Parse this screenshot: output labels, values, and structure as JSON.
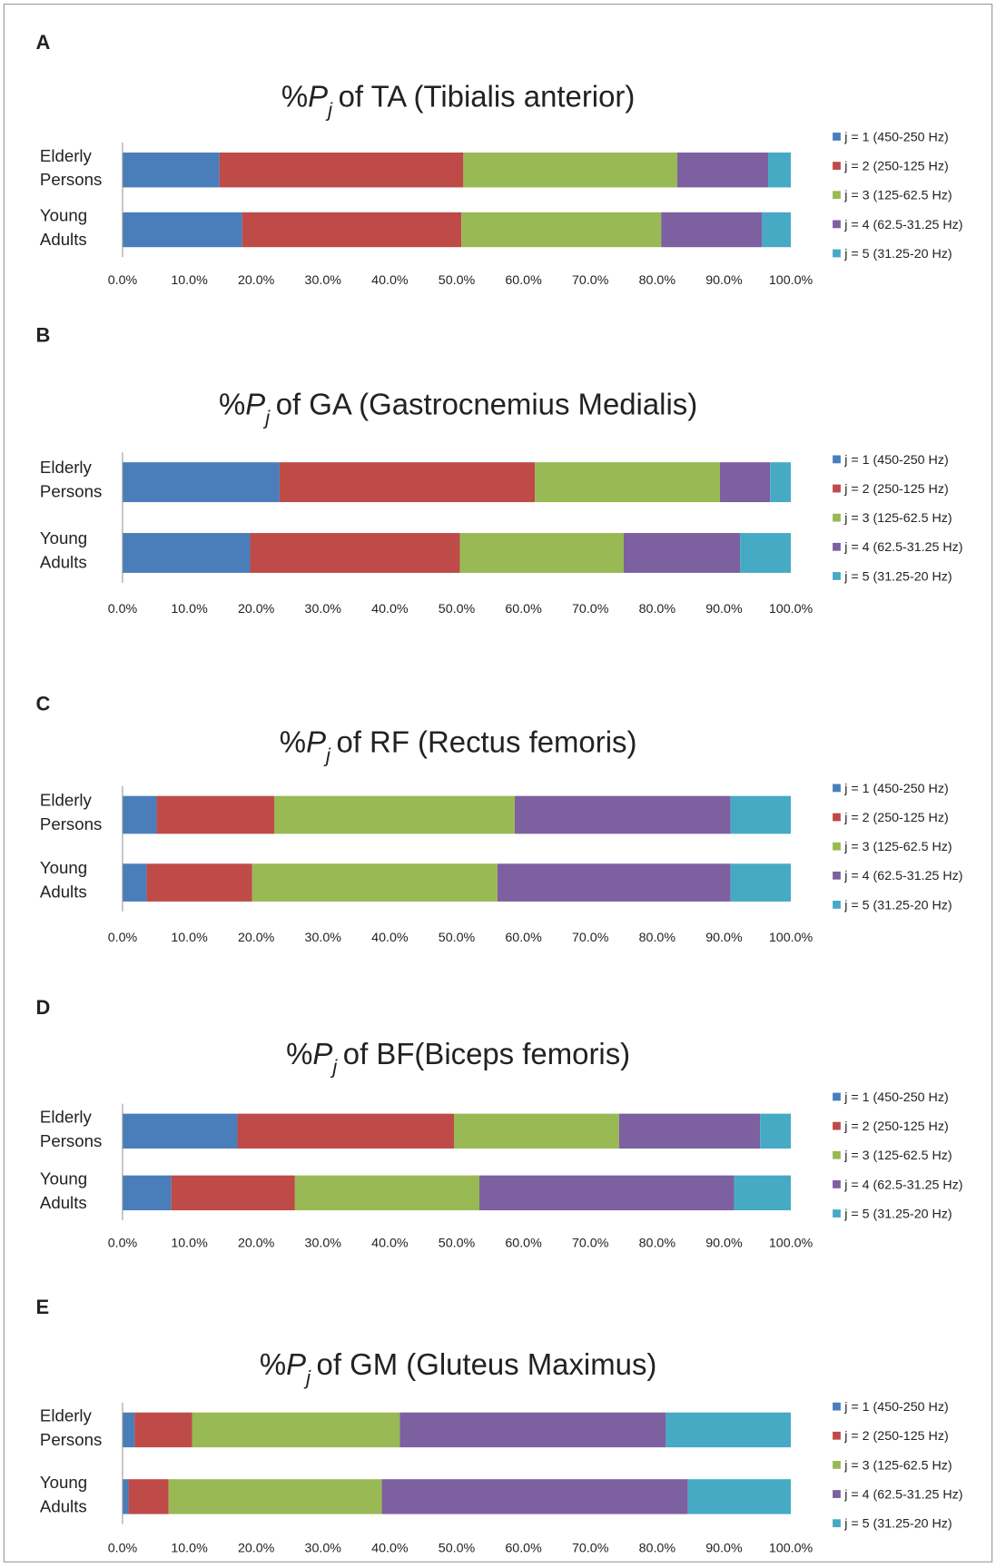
{
  "chart_data": [
    {
      "type": "bar",
      "orientation": "horizontal",
      "stacked": true,
      "panel": "A",
      "title": {
        "prefix": "%",
        "symbol": "P",
        "subscript": "j",
        "text": "of TA (Tibialis anterior)"
      },
      "categories": [
        "Elderly Persons",
        "Young Adults"
      ],
      "series": [
        {
          "name": "j = 1 (450-250 Hz)",
          "color": "#4a7ebb",
          "values": [
            14.5,
            17.9
          ]
        },
        {
          "name": "j = 2 (250-125 Hz)",
          "color": "#be4b48",
          "values": [
            36.5,
            32.8
          ]
        },
        {
          "name": "j = 3 (125-62.5 Hz)",
          "color": "#98b954",
          "values": [
            32.0,
            29.9
          ]
        },
        {
          "name": "j = 4 (62.5-31.25 Hz)",
          "color": "#7d60a0",
          "values": [
            13.6,
            15.1
          ]
        },
        {
          "name": "j = 5 (31.25-20 Hz)",
          "color": "#46aac5",
          "values": [
            3.4,
            4.3
          ]
        }
      ],
      "xlim": [
        0,
        100
      ],
      "xticks": [
        {
          "value": 0,
          "label": "0.0%"
        },
        {
          "value": 10,
          "label": "10.0%"
        },
        {
          "value": 20,
          "label": "20.0%"
        },
        {
          "value": 30,
          "label": "30.0%"
        },
        {
          "value": 40,
          "label": "40.0%"
        },
        {
          "value": 50,
          "label": "50.0%"
        },
        {
          "value": 60,
          "label": "60.0%"
        },
        {
          "value": 70,
          "label": "70.0%"
        },
        {
          "value": 80,
          "label": "80.0%"
        },
        {
          "value": 90,
          "label": "90.0%"
        },
        {
          "value": 100,
          "label": "100.0%"
        }
      ],
      "legend": "right"
    },
    {
      "type": "bar",
      "orientation": "horizontal",
      "stacked": true,
      "panel": "B",
      "title": {
        "prefix": "%",
        "symbol": "P",
        "subscript": "j",
        "text": "of GA (Gastrocnemius Medialis)"
      },
      "categories": [
        "Elderly Persons",
        "Young Adults"
      ],
      "series": [
        {
          "name": "j = 1 (450-250 Hz)",
          "color": "#4a7ebb",
          "values": [
            23.5,
            19.1
          ]
        },
        {
          "name": "j = 2 (250-125 Hz)",
          "color": "#be4b48",
          "values": [
            38.2,
            31.4
          ]
        },
        {
          "name": "j = 3 (125-62.5 Hz)",
          "color": "#98b954",
          "values": [
            27.7,
            24.5
          ]
        },
        {
          "name": "j = 4 (62.5-31.25 Hz)",
          "color": "#7d60a0",
          "values": [
            7.5,
            17.4
          ]
        },
        {
          "name": "j = 5 (31.25-20 Hz)",
          "color": "#46aac5",
          "values": [
            3.1,
            7.6
          ]
        }
      ],
      "xlim": [
        0,
        100
      ],
      "xticks": [
        {
          "value": 0,
          "label": "0.0%"
        },
        {
          "value": 10,
          "label": "10.0%"
        },
        {
          "value": 20,
          "label": "20.0%"
        },
        {
          "value": 30,
          "label": "30.0%"
        },
        {
          "value": 40,
          "label": "40.0%"
        },
        {
          "value": 50,
          "label": "50.0%"
        },
        {
          "value": 60,
          "label": "60.0%"
        },
        {
          "value": 70,
          "label": "70.0%"
        },
        {
          "value": 80,
          "label": "80.0%"
        },
        {
          "value": 90,
          "label": "90.0%"
        },
        {
          "value": 100,
          "label": "100.0%"
        }
      ],
      "legend": "right"
    },
    {
      "type": "bar",
      "orientation": "horizontal",
      "stacked": true,
      "panel": "C",
      "title": {
        "prefix": "%",
        "symbol": "P",
        "subscript": "j",
        "text": "of RF (Rectus femoris)"
      },
      "categories": [
        "Elderly Persons",
        "Young Adults"
      ],
      "series": [
        {
          "name": "j = 1 (450-250 Hz)",
          "color": "#4a7ebb",
          "values": [
            5.1,
            3.6
          ]
        },
        {
          "name": "j = 2 (250-125 Hz)",
          "color": "#be4b48",
          "values": [
            17.6,
            15.8
          ]
        },
        {
          "name": "j = 3 (125-62.5 Hz)",
          "color": "#98b954",
          "values": [
            36.0,
            36.7
          ]
        },
        {
          "name": "j = 4 (62.5-31.25 Hz)",
          "color": "#7d60a0",
          "values": [
            32.3,
            34.9
          ]
        },
        {
          "name": "j = 5 (31.25-20 Hz)",
          "color": "#46aac5",
          "values": [
            9.0,
            9.0
          ]
        }
      ],
      "xlim": [
        0,
        100
      ],
      "xticks": [
        {
          "value": 0,
          "label": "0.0%"
        },
        {
          "value": 10,
          "label": "10.0%"
        },
        {
          "value": 20,
          "label": "20.0%"
        },
        {
          "value": 30,
          "label": "30.0%"
        },
        {
          "value": 40,
          "label": "40.0%"
        },
        {
          "value": 50,
          "label": "50.0%"
        },
        {
          "value": 60,
          "label": "60.0%"
        },
        {
          "value": 70,
          "label": "70.0%"
        },
        {
          "value": 80,
          "label": "80.0%"
        },
        {
          "value": 90,
          "label": "90.0%"
        },
        {
          "value": 100,
          "label": "100.0%"
        }
      ],
      "legend": "right"
    },
    {
      "type": "bar",
      "orientation": "horizontal",
      "stacked": true,
      "panel": "D",
      "title": {
        "prefix": "%",
        "symbol": "P",
        "subscript": "j",
        "text": "of BF(Biceps femoris)"
      },
      "categories": [
        "Elderly Persons",
        "Young Adults"
      ],
      "series": [
        {
          "name": "j = 1 (450-250 Hz)",
          "color": "#4a7ebb",
          "values": [
            17.2,
            7.3
          ]
        },
        {
          "name": "j = 2 (250-125 Hz)",
          "color": "#be4b48",
          "values": [
            32.4,
            18.5
          ]
        },
        {
          "name": "j = 3 (125-62.5 Hz)",
          "color": "#98b954",
          "values": [
            24.7,
            27.6
          ]
        },
        {
          "name": "j = 4 (62.5-31.25 Hz)",
          "color": "#7d60a0",
          "values": [
            21.1,
            38.1
          ]
        },
        {
          "name": "j = 5 (31.25-20 Hz)",
          "color": "#46aac5",
          "values": [
            4.6,
            8.5
          ]
        }
      ],
      "xlim": [
        0,
        100
      ],
      "xticks": [
        {
          "value": 0,
          "label": "0.0%"
        },
        {
          "value": 10,
          "label": "10.0%"
        },
        {
          "value": 20,
          "label": "20.0%"
        },
        {
          "value": 30,
          "label": "30.0%"
        },
        {
          "value": 40,
          "label": "40.0%"
        },
        {
          "value": 50,
          "label": "50.0%"
        },
        {
          "value": 60,
          "label": "60.0%"
        },
        {
          "value": 70,
          "label": "70.0%"
        },
        {
          "value": 80,
          "label": "80.0%"
        },
        {
          "value": 90,
          "label": "90.0%"
        },
        {
          "value": 100,
          "label": "100.0%"
        }
      ],
      "legend": "right"
    },
    {
      "type": "bar",
      "orientation": "horizontal",
      "stacked": true,
      "panel": "E",
      "title": {
        "prefix": "%",
        "symbol": "P",
        "subscript": "j",
        "text": "of GM (Gluteus Maximus)"
      },
      "categories": [
        "Elderly Persons",
        "Young Adults"
      ],
      "series": [
        {
          "name": "j = 1 (450-250 Hz)",
          "color": "#4a7ebb",
          "values": [
            1.8,
            0.9
          ]
        },
        {
          "name": "j = 2 (250-125 Hz)",
          "color": "#be4b48",
          "values": [
            8.6,
            6.0
          ]
        },
        {
          "name": "j = 3 (125-62.5 Hz)",
          "color": "#98b954",
          "values": [
            31.1,
            31.9
          ]
        },
        {
          "name": "j = 4 (62.5-31.25 Hz)",
          "color": "#7d60a0",
          "values": [
            39.8,
            45.8
          ]
        },
        {
          "name": "j = 5 (31.25-20 Hz)",
          "color": "#46aac5",
          "values": [
            18.7,
            15.4
          ]
        }
      ],
      "xlim": [
        0,
        100
      ],
      "xticks": [
        {
          "value": 0,
          "label": "0.0%"
        },
        {
          "value": 10,
          "label": "10.0%"
        },
        {
          "value": 20,
          "label": "20.0%"
        },
        {
          "value": 30,
          "label": "30.0%"
        },
        {
          "value": 40,
          "label": "40.0%"
        },
        {
          "value": 50,
          "label": "50.0%"
        },
        {
          "value": 60,
          "label": "60.0%"
        },
        {
          "value": 70,
          "label": "70.0%"
        },
        {
          "value": 80,
          "label": "80.0%"
        },
        {
          "value": 90,
          "label": "90.0%"
        },
        {
          "value": 100,
          "label": "100.0%"
        }
      ],
      "legend": "right"
    }
  ]
}
